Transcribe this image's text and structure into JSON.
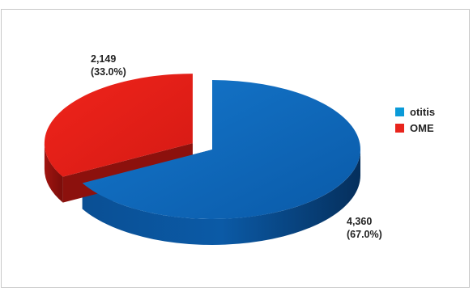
{
  "chart_data": {
    "type": "pie",
    "style": "3d-exploded",
    "title": "",
    "slices": [
      {
        "name": "otitis",
        "value": 4360,
        "value_label": "4,360",
        "percent_label": "(67.0%)",
        "color": "#0a63b8",
        "exploded": false
      },
      {
        "name": "OME",
        "value": 2149,
        "value_label": "2,149",
        "percent_label": "(33.0%)",
        "color": "#e8241c",
        "exploded": true
      }
    ],
    "legend": {
      "placement": "right",
      "items": [
        {
          "label": "otitis",
          "color": "#0a9ad8"
        },
        {
          "label": "OME",
          "color": "#e8241c"
        }
      ]
    }
  }
}
